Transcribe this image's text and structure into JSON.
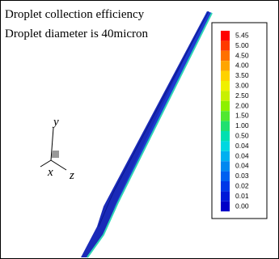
{
  "plot": {
    "title_lines": [
      "Droplet collection efficiency",
      "Droplet diameter is 40micron"
    ],
    "axes": {
      "y": "y",
      "x": "x",
      "z": "z"
    },
    "legend": {
      "levels": [
        "5.45",
        "5.00",
        "4.50",
        "4.00",
        "3.50",
        "3.00",
        "2.50",
        "2.00",
        "1.50",
        "1.00",
        "0.50",
        "0.04",
        "0.04",
        "0.04",
        "0.03",
        "0.02",
        "0.01",
        "0.00"
      ],
      "colors": [
        "#ff0000",
        "#ff3a00",
        "#ff7000",
        "#ffa500",
        "#ffd200",
        "#f0f000",
        "#c8f000",
        "#8ef000",
        "#50e830",
        "#20e070",
        "#00e0b0",
        "#00d8e0",
        "#00b0f0",
        "#0088f0",
        "#0060f0",
        "#0038e8",
        "#0018d8",
        "#0000c8"
      ]
    }
  }
}
